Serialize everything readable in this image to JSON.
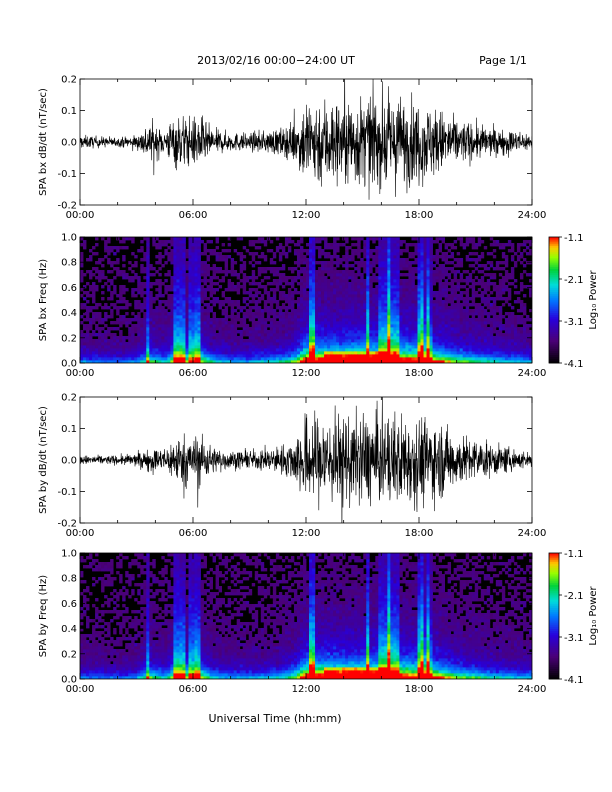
{
  "header": {
    "title": "2013/02/16  00:00−24:00 UT",
    "page": "Page 1/1"
  },
  "xlabel": "Universal Time (hh:mm)",
  "chart_data": [
    {
      "type": "line",
      "ylabel": "SPA bx dB/dt (nT/sec)",
      "ylim": [
        -0.2,
        0.2
      ],
      "yticks": [
        "-0.2",
        "-0.1",
        "0.0",
        "0.1",
        "0.2"
      ],
      "yticks_values": [
        -0.2,
        -0.1,
        0.0,
        0.1,
        0.2
      ],
      "xlim": [
        0,
        24
      ],
      "xticks": [
        "00:00",
        "06:00",
        "12:00",
        "18:00",
        "24:00"
      ],
      "xticks_values": [
        0,
        6,
        12,
        18,
        24
      ],
      "envelope": {
        "x": [
          0,
          1,
          2,
          3,
          3.7,
          4.5,
          5,
          5.5,
          6,
          6.2,
          7,
          8,
          9,
          10,
          11,
          11.5,
          12,
          12.5,
          13,
          14,
          15,
          16,
          17,
          18,
          19,
          20,
          21,
          22,
          23,
          24
        ],
        "amplitude": [
          0.03,
          0.025,
          0.02,
          0.03,
          0.09,
          0.05,
          0.12,
          0.12,
          0.1,
          0.13,
          0.06,
          0.04,
          0.04,
          0.05,
          0.07,
          0.1,
          0.2,
          0.2,
          0.2,
          0.19,
          0.2,
          0.2,
          0.2,
          0.18,
          0.15,
          0.1,
          0.08,
          0.06,
          0.05,
          0.04
        ]
      }
    },
    {
      "type": "heatmap",
      "ylabel": "SPA bx Freq (Hz)",
      "ylim": [
        0,
        1.0
      ],
      "yticks": [
        "0.0",
        "0.2",
        "0.4",
        "0.6",
        "0.8",
        "1.0"
      ],
      "yticks_values": [
        0,
        0.2,
        0.4,
        0.6,
        0.8,
        1.0
      ],
      "xlim": [
        0,
        24
      ],
      "xticks": [
        "00:00",
        "06:00",
        "12:00",
        "18:00",
        "24:00"
      ],
      "xticks_values": [
        0,
        6,
        12,
        18,
        24
      ],
      "colorbar": {
        "label": "Log₁₀ Power",
        "ticks": [
          "-1.1",
          "-2.1",
          "-3.1",
          "-4.1"
        ],
        "ticks_values": [
          -1.1,
          -2.1,
          -3.1,
          -4.1
        ],
        "range": [
          -4.1,
          -1.1
        ]
      }
    },
    {
      "type": "line",
      "ylabel": "SPA by dB/dt (nT/sec)",
      "ylim": [
        -0.2,
        0.2
      ],
      "yticks": [
        "-0.2",
        "-0.1",
        "0.0",
        "0.1",
        "0.2"
      ],
      "yticks_values": [
        -0.2,
        -0.1,
        0.0,
        0.1,
        0.2
      ],
      "xlim": [
        0,
        24
      ],
      "xticks": [
        "00:00",
        "06:00",
        "12:00",
        "18:00",
        "24:00"
      ],
      "xticks_values": [
        0,
        6,
        12,
        18,
        24
      ],
      "envelope": {
        "x": [
          0,
          1,
          2,
          3,
          3.7,
          4.5,
          5,
          5.5,
          6,
          6.2,
          7,
          8,
          9,
          10,
          11,
          11.5,
          12,
          12.5,
          13,
          14,
          15,
          16,
          17,
          18,
          19,
          20,
          21,
          22,
          23,
          24
        ],
        "amplitude": [
          0.02,
          0.02,
          0.02,
          0.03,
          0.05,
          0.05,
          0.1,
          0.11,
          0.09,
          0.13,
          0.06,
          0.04,
          0.04,
          0.05,
          0.07,
          0.12,
          0.2,
          0.2,
          0.2,
          0.2,
          0.2,
          0.2,
          0.2,
          0.2,
          0.17,
          0.12,
          0.09,
          0.07,
          0.05,
          0.03
        ]
      }
    },
    {
      "type": "heatmap",
      "ylabel": "SPA by Freq (Hz)",
      "ylim": [
        0,
        1.0
      ],
      "yticks": [
        "0.0",
        "0.2",
        "0.4",
        "0.6",
        "0.8",
        "1.0"
      ],
      "yticks_values": [
        0,
        0.2,
        0.4,
        0.6,
        0.8,
        1.0
      ],
      "xlim": [
        0,
        24
      ],
      "xticks": [
        "00:00",
        "06:00",
        "12:00",
        "18:00",
        "24:00"
      ],
      "xticks_values": [
        0,
        6,
        12,
        18,
        24
      ],
      "colorbar": {
        "label": "Log₁₀ Power",
        "ticks": [
          "-1.1",
          "-2.1",
          "-3.1",
          "-4.1"
        ],
        "ticks_values": [
          -1.1,
          -2.1,
          -3.1,
          -4.1
        ],
        "range": [
          -4.1,
          -1.1
        ]
      }
    }
  ]
}
